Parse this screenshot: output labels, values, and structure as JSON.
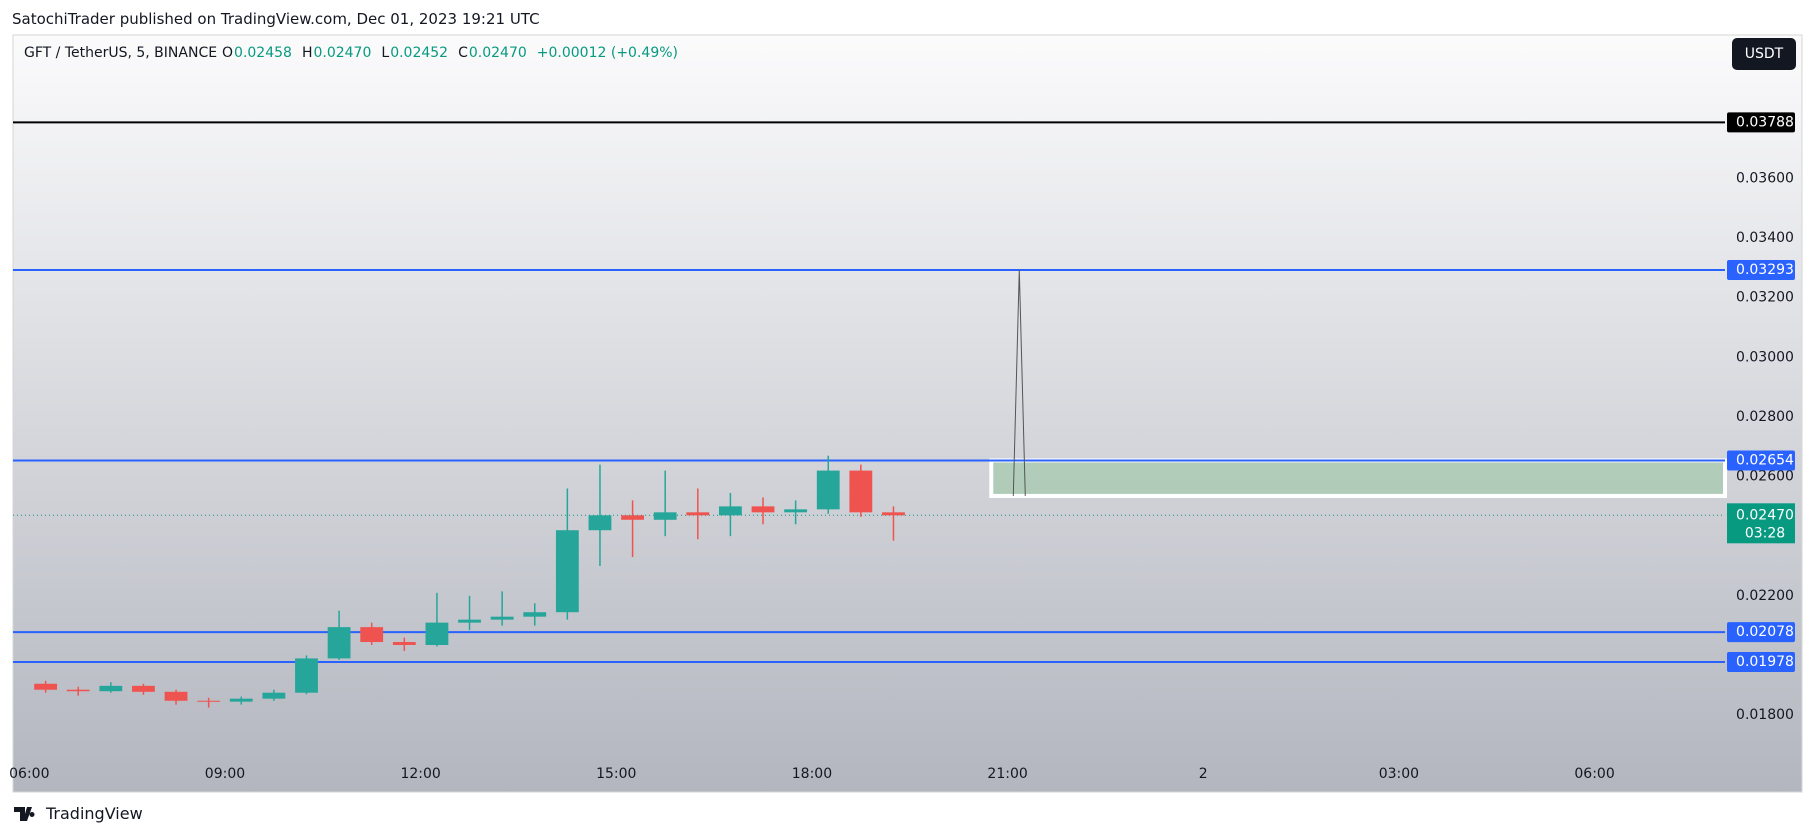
{
  "header": {
    "publisher": "SatochiTrader published on TradingView.com, Dec 01, 2023 19:21 UTC",
    "footer": "TradingView"
  },
  "legend": {
    "symbol": "GFT / TetherUS, 5, BINANCE",
    "o_key": "O",
    "o": "0.02458",
    "h_key": "H",
    "h": "0.02470",
    "l_key": "L",
    "l": "0.02452",
    "c_key": "C",
    "c": "0.02470",
    "change": "+0.00012 (+0.49%)"
  },
  "currency_button": "USDT",
  "chart_data": {
    "type": "candlestick",
    "x": [
      6.0,
      6.5,
      7.0,
      7.5,
      8.0,
      8.5,
      9.0,
      9.5,
      10.0,
      10.5,
      11.0,
      11.5,
      12.0,
      12.5,
      13.0,
      13.5,
      14.0,
      14.5,
      15.0,
      15.5,
      16.0,
      16.5,
      17.0,
      17.5,
      18.0,
      18.5,
      19.0
    ],
    "open": [
      0.01905,
      0.01885,
      0.0188,
      0.01898,
      0.01878,
      0.01848,
      0.01845,
      0.01855,
      0.01875,
      0.0199,
      0.02095,
      0.02045,
      0.02035,
      0.0211,
      0.0212,
      0.0213,
      0.02145,
      0.0242,
      0.0247,
      0.02455,
      0.0248,
      0.0247,
      0.025,
      0.0248,
      0.0249,
      0.0262,
      0.0248
    ],
    "high": [
      0.01915,
      0.01895,
      0.0191,
      0.01905,
      0.01885,
      0.01858,
      0.01862,
      0.01885,
      0.02,
      0.0215,
      0.0211,
      0.0206,
      0.0221,
      0.022,
      0.02215,
      0.02175,
      0.0256,
      0.0264,
      0.0252,
      0.0262,
      0.0256,
      0.02545,
      0.0253,
      0.0252,
      0.0267,
      0.0264,
      0.025
    ],
    "low": [
      0.01875,
      0.01865,
      0.01875,
      0.01868,
      0.01835,
      0.01825,
      0.01835,
      0.01848,
      0.0187,
      0.01985,
      0.02035,
      0.02015,
      0.0203,
      0.02085,
      0.021,
      0.021,
      0.0212,
      0.023,
      0.0233,
      0.024,
      0.0239,
      0.024,
      0.0244,
      0.0244,
      0.02475,
      0.02465,
      0.02385
    ],
    "close": [
      0.01885,
      0.0188,
      0.01898,
      0.01878,
      0.01848,
      0.01845,
      0.01855,
      0.01875,
      0.0199,
      0.02095,
      0.02045,
      0.02035,
      0.0211,
      0.0212,
      0.0213,
      0.02145,
      0.0242,
      0.0247,
      0.02455,
      0.0248,
      0.0247,
      0.025,
      0.0248,
      0.0249,
      0.0262,
      0.0248,
      0.0247
    ],
    "up_color": "#26a69a",
    "down_color": "#ef5350",
    "xlim": [
      5.75,
      32.0
    ],
    "xticks": [
      {
        "value": 6,
        "label": "06:00"
      },
      {
        "value": 9,
        "label": "09:00"
      },
      {
        "value": 12,
        "label": "12:00"
      },
      {
        "value": 15,
        "label": "15:00"
      },
      {
        "value": 18,
        "label": "18:00"
      },
      {
        "value": 21,
        "label": "21:00"
      },
      {
        "value": 24,
        "label": "2"
      },
      {
        "value": 27,
        "label": "03:00"
      },
      {
        "value": 30,
        "label": "06:00"
      }
    ],
    "ylim": [
      0.01656,
      0.04081
    ],
    "yticks": [
      {
        "value": 0.018,
        "label": "0.01800"
      },
      {
        "value": 0.022,
        "label": "0.02200"
      },
      {
        "value": 0.026,
        "label": "0.02600"
      },
      {
        "value": 0.028,
        "label": "0.02800"
      },
      {
        "value": 0.03,
        "label": "0.03000"
      },
      {
        "value": 0.032,
        "label": "0.03200"
      },
      {
        "value": 0.034,
        "label": "0.03400"
      },
      {
        "value": 0.036,
        "label": "0.03600"
      }
    ],
    "levels": [
      {
        "value": 0.03788,
        "label": "0.03788",
        "color": "#000000"
      },
      {
        "value": 0.03293,
        "label": "0.03293",
        "color": "#2962ff"
      },
      {
        "value": 0.02654,
        "label": "0.02654",
        "color": "#2962ff"
      },
      {
        "value": 0.02078,
        "label": "0.02078",
        "color": "#2962ff"
      },
      {
        "value": 0.01978,
        "label": "0.01978",
        "color": "#2962ff"
      }
    ],
    "zone": {
      "low": 0.02535,
      "high": 0.02654,
      "start": 20.75,
      "color": "#a5c9ad"
    },
    "current": {
      "value": 0.0247,
      "label": "0.02470",
      "countdown": "03:28",
      "color": "#089981"
    }
  }
}
